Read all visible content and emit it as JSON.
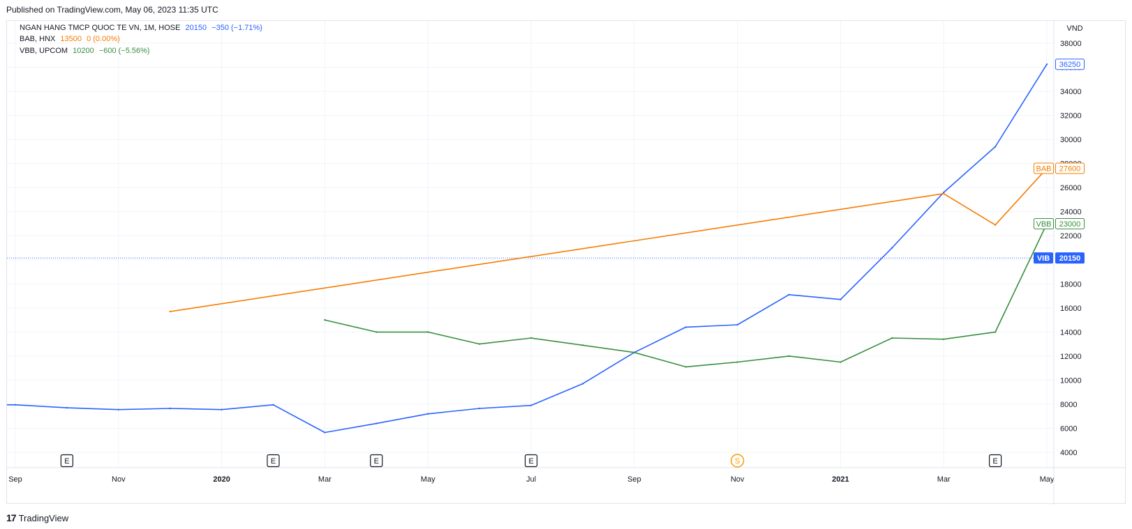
{
  "header": {
    "published": "Published on TradingView.com, May 06, 2023 11:35 UTC"
  },
  "footer": {
    "brand": "TradingView"
  },
  "legend": [
    {
      "name": "NGAN HANG TMCP QUOC TE VN, 1M, HOSE",
      "value": "20150",
      "change": "−350 (−1.71%)",
      "color": "#2962ff"
    },
    {
      "name": "BAB, HNX",
      "value": "13500",
      "change": "0 (0.00%)",
      "color": "#f57c00"
    },
    {
      "name": "VBB, UPCOM",
      "value": "10200",
      "change": "−600 (−5.56%)",
      "color": "#388e3c"
    }
  ],
  "colors": {
    "vib": "#2962ff",
    "bab": "#f57c00",
    "vbb": "#388e3c",
    "grid": "#f0f3fa",
    "axis_text": "#131722",
    "event": "#131722",
    "dividend": "#ff9800"
  },
  "chart_data": {
    "type": "line",
    "ylabel": "VND",
    "ylim": [
      3000,
      39500
    ],
    "y_ticks": [
      "4000",
      "6000",
      "8000",
      "10000",
      "12000",
      "14000",
      "16000",
      "18000",
      "20000",
      "22000",
      "24000",
      "26000",
      "28000",
      "30000",
      "32000",
      "34000",
      "36000",
      "38000"
    ],
    "x_ticks": [
      {
        "label": "Sep",
        "bold": false,
        "x": "2019-09"
      },
      {
        "label": "Nov",
        "bold": false,
        "x": "2019-11"
      },
      {
        "label": "2020",
        "bold": true,
        "x": "2020-01"
      },
      {
        "label": "Mar",
        "bold": false,
        "x": "2020-03"
      },
      {
        "label": "May",
        "bold": false,
        "x": "2020-05"
      },
      {
        "label": "Jul",
        "bold": false,
        "x": "2020-07"
      },
      {
        "label": "Sep",
        "bold": false,
        "x": "2020-09"
      },
      {
        "label": "Nov",
        "bold": false,
        "x": "2020-11"
      },
      {
        "label": "2021",
        "bold": true,
        "x": "2021-01"
      },
      {
        "label": "Mar",
        "bold": false,
        "x": "2021-03"
      },
      {
        "label": "May",
        "bold": false,
        "x": "2021-05"
      }
    ],
    "series": [
      {
        "key": "vib",
        "tag": "VIB",
        "x": [
          "2019-08",
          "2019-09",
          "2019-10",
          "2019-11",
          "2019-12",
          "2020-01",
          "2020-02",
          "2020-03",
          "2020-04",
          "2020-05",
          "2020-06",
          "2020-07",
          "2020-08",
          "2020-09",
          "2020-10",
          "2020-11",
          "2020-12",
          "2021-01",
          "2021-02",
          "2021-03",
          "2021-04",
          "2021-05"
        ],
        "values": [
          7950,
          7950,
          7700,
          7550,
          7650,
          7550,
          7950,
          5650,
          6400,
          7200,
          7650,
          7900,
          9700,
          12300,
          14400,
          14600,
          17100,
          16700,
          21000,
          25600,
          29400,
          36250
        ]
      },
      {
        "key": "bab",
        "tag": "BAB",
        "x": [
          "2019-12",
          "2021-03",
          "2021-04",
          "2021-05"
        ],
        "values": [
          15700,
          25500,
          22900,
          27600
        ]
      },
      {
        "key": "vbb",
        "tag": "VBB",
        "x": [
          "2020-03",
          "2020-04",
          "2020-05",
          "2020-06",
          "2020-07",
          "2020-08",
          "2020-09",
          "2020-10",
          "2020-11",
          "2020-12",
          "2021-01",
          "2021-02",
          "2021-03",
          "2021-04",
          "2021-05"
        ],
        "values": [
          15000,
          14000,
          14000,
          13000,
          13500,
          12900,
          12300,
          11100,
          11500,
          12000,
          11500,
          13500,
          13400,
          14000,
          23000
        ]
      }
    ],
    "last_labels": [
      {
        "key": "vib",
        "tag": "VIB",
        "value": "36250",
        "v": 36250,
        "style": "outline"
      },
      {
        "key": "bab",
        "tag": "BAB",
        "value": "27600",
        "v": 27600,
        "style": "outline"
      },
      {
        "key": "vbb",
        "tag": "VBB",
        "value": "23000",
        "v": 23000,
        "style": "outline"
      },
      {
        "key": "vib",
        "tag": "VIB",
        "value": "20150",
        "v": 20150,
        "style": "filled"
      }
    ],
    "price_line": 20150,
    "events": [
      {
        "label": "E",
        "x": "2019-10",
        "kind": "earnings"
      },
      {
        "label": "E",
        "x": "2020-02",
        "kind": "earnings"
      },
      {
        "label": "E",
        "x": "2020-04",
        "kind": "earnings"
      },
      {
        "label": "E",
        "x": "2020-07",
        "kind": "earnings"
      },
      {
        "label": "S",
        "x": "2020-11",
        "kind": "split"
      },
      {
        "label": "E",
        "x": "2021-04",
        "kind": "earnings"
      }
    ]
  }
}
